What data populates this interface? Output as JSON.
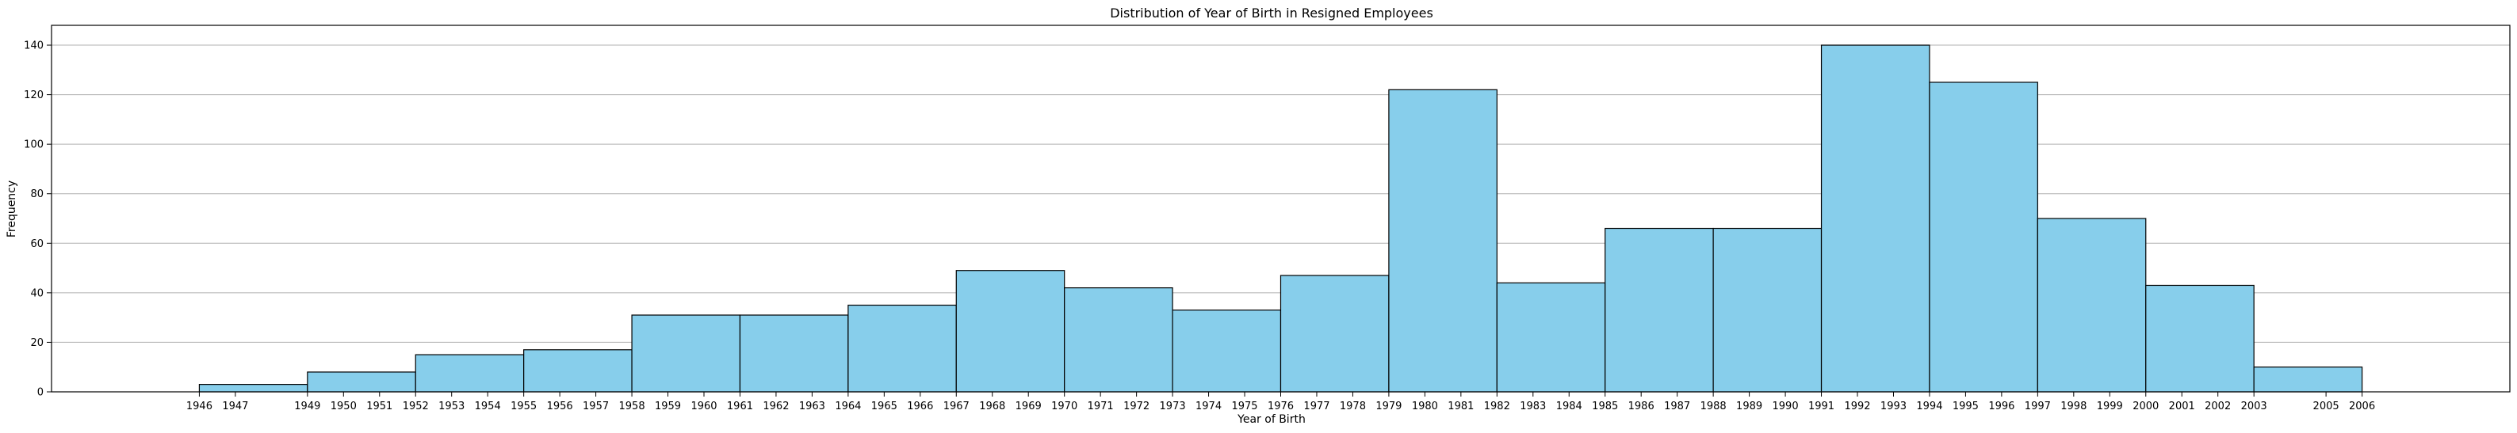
{
  "chart_data": {
    "type": "bar",
    "title": "Distribution of Year of Birth in Resigned Employees",
    "xlabel": "Year of Birth",
    "ylabel": "Frequency",
    "ylim": [
      0,
      148
    ],
    "xlim": [
      1941.9,
      2010.1
    ],
    "grid": "y",
    "bar_color": "#87ceeb",
    "edge_color": "#000000",
    "bin_edges": [
      1946,
      1949,
      1952,
      1955,
      1958,
      1961,
      1964,
      1967,
      1970,
      1973,
      1976,
      1979,
      1982,
      1985,
      1988,
      1991,
      1994,
      1997,
      2000,
      2003,
      2006
    ],
    "values": [
      3,
      8,
      15,
      17,
      31,
      31,
      35,
      49,
      42,
      33,
      47,
      122,
      44,
      66,
      66,
      140,
      125,
      70,
      43,
      10
    ],
    "x_ticks": [
      1946,
      1947,
      1949,
      1950,
      1951,
      1952,
      1953,
      1954,
      1955,
      1956,
      1957,
      1958,
      1959,
      1960,
      1961,
      1962,
      1963,
      1964,
      1965,
      1966,
      1967,
      1968,
      1969,
      1970,
      1971,
      1972,
      1973,
      1974,
      1975,
      1976,
      1977,
      1978,
      1979,
      1980,
      1981,
      1982,
      1983,
      1984,
      1985,
      1986,
      1987,
      1988,
      1989,
      1990,
      1991,
      1992,
      1993,
      1994,
      1995,
      1996,
      1997,
      1998,
      1999,
      2000,
      2001,
      2002,
      2003,
      2005,
      2006
    ],
    "y_ticks": [
      0,
      20,
      40,
      60,
      80,
      100,
      120,
      140
    ]
  }
}
